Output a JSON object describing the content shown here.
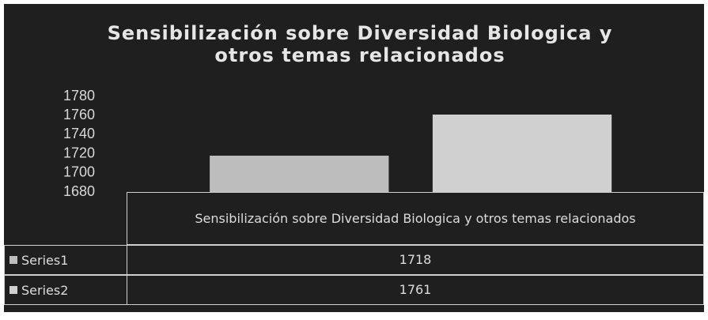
{
  "chart_data": {
    "type": "bar",
    "title": "Sensibilización sobre Diversidad Biologica y otros temas relacionados",
    "categories": [
      "Sensibilización sobre Diversidad Biologica y otros temas relacionados"
    ],
    "series": [
      {
        "name": "Series1",
        "color": "#bdbdbd",
        "values": [
          1718
        ]
      },
      {
        "name": "Series2",
        "color": "#d0d0d0",
        "values": [
          1761
        ]
      }
    ],
    "ylim": [
      1680,
      1780
    ],
    "yticks": [
      1680,
      1700,
      1720,
      1740,
      1760,
      1780
    ],
    "grid": false
  }
}
